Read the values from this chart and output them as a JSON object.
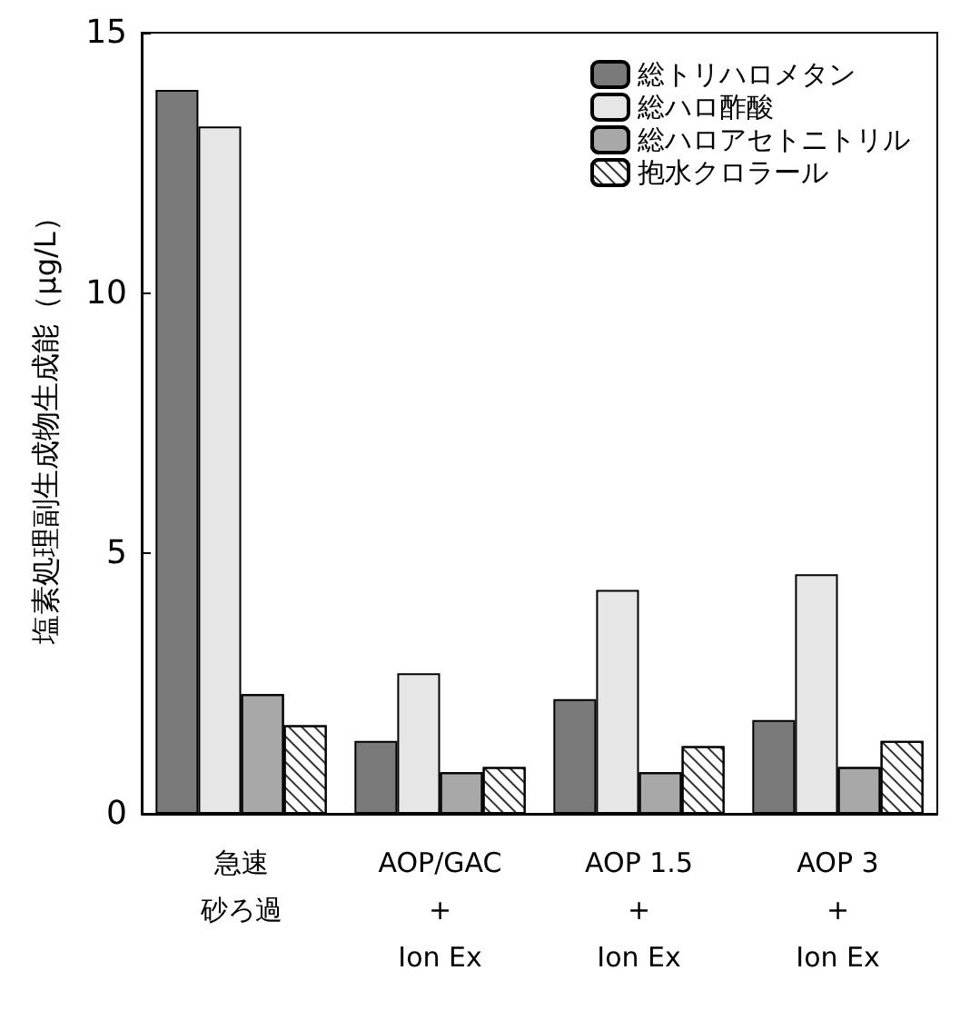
{
  "chart_data": {
    "type": "bar",
    "ylabel": "塩素処理副生成物生成能（μg/L）",
    "categories": [
      "急速砂ろ過",
      "AOP/GAC\n+\nIon Ex",
      "AOP 1.5\n+\nIon Ex",
      "AOP 3\n+\nIon Ex"
    ],
    "series": [
      {
        "name": "総トリハロメタン",
        "color": "#7a7a7a",
        "values": [
          13.9,
          1.4,
          2.2,
          1.8
        ]
      },
      {
        "name": "総ハロ酢酸",
        "color": "#e6e6e6",
        "values": [
          13.2,
          2.7,
          4.3,
          4.6
        ]
      },
      {
        "name": "総ハロアセトニトリル",
        "color": "#a8a8a8",
        "values": [
          2.3,
          0.8,
          0.8,
          0.9
        ]
      },
      {
        "name": "抱水クロラール",
        "color": "#ffffff",
        "values": [
          1.7,
          0.9,
          1.3,
          1.4
        ]
      }
    ],
    "ylim": [
      0,
      15
    ],
    "yticks": [
      0,
      5,
      10,
      15
    ],
    "grid": false,
    "legend": "top right"
  }
}
